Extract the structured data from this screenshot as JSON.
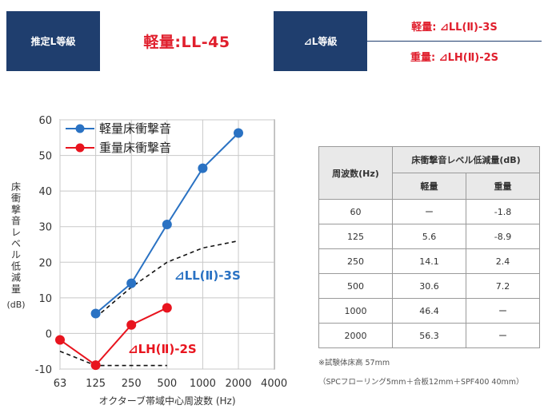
{
  "header": {
    "estimate_label": "推定L等級",
    "estimate_value": "軽量:LL-45",
    "dl_label": "⊿L等級",
    "dl_light": "軽量: ⊿LL(Ⅱ)-3S",
    "dl_heavy": "重量: ⊿LH(Ⅱ)-2S"
  },
  "colors": {
    "navy": "#1f3e6e",
    "accent_red": "#e01f2d",
    "light_series": "#2a72c3",
    "heavy_series": "#e8141e",
    "reference_curve": "#111111"
  },
  "chart_data": {
    "type": "line",
    "x_categories": [
      "63",
      "125",
      "250",
      "500",
      "1000",
      "2000",
      "4000"
    ],
    "y_ticks": [
      "60",
      "50",
      "40",
      "30",
      "20",
      "10",
      "0",
      "-10"
    ],
    "ylim": [
      -10,
      60
    ],
    "xlabel": "オクターブ帯域中心周波数 (Hz)",
    "ylabel": "床衝撃音レベル低減量",
    "yunit": "(dB)",
    "legend_position": "top-left",
    "grid": true,
    "series": [
      {
        "name": "軽量床衝撃音",
        "color": "#2a72c3",
        "x": [
          "125",
          "250",
          "500",
          "1000",
          "2000"
        ],
        "values": [
          5.6,
          14.1,
          30.6,
          46.4,
          56.3
        ]
      },
      {
        "name": "重量床衝撃音",
        "color": "#e8141e",
        "x": [
          "63",
          "125",
          "250",
          "500"
        ],
        "values": [
          -1.8,
          -8.9,
          2.4,
          7.2
        ]
      }
    ],
    "reference_curves": [
      {
        "label": "⊿LL(Ⅱ)-3S",
        "color": "#2a72c3",
        "x": [
          "125",
          "250",
          "500",
          "1000",
          "2000"
        ],
        "values": [
          4.5,
          13,
          20,
          24,
          26
        ]
      },
      {
        "label": "⊿LH(Ⅱ)-2S",
        "color": "#e8141e",
        "x": [
          "63",
          "125",
          "250",
          "500"
        ],
        "values": [
          -5,
          -9,
          -9,
          -9
        ]
      }
    ]
  },
  "table": {
    "header_freq": "周波数(Hz)",
    "header_group": "床衝撃音レベル低減量(dB)",
    "header_light": "軽量",
    "header_heavy": "重量",
    "rows": [
      {
        "freq": "60",
        "light": "ー",
        "heavy": "-1.8"
      },
      {
        "freq": "125",
        "light": "5.6",
        "heavy": "-8.9"
      },
      {
        "freq": "250",
        "light": "14.1",
        "heavy": "2.4"
      },
      {
        "freq": "500",
        "light": "30.6",
        "heavy": "7.2"
      },
      {
        "freq": "1000",
        "light": "46.4",
        "heavy": "ー"
      },
      {
        "freq": "2000",
        "light": "56.3",
        "heavy": "ー"
      }
    ]
  },
  "notes": {
    "line1": "※試験体床高 57mm",
    "line2": "（SPCフローリング5mm＋合板12mm＋SPF400 40mm）"
  }
}
